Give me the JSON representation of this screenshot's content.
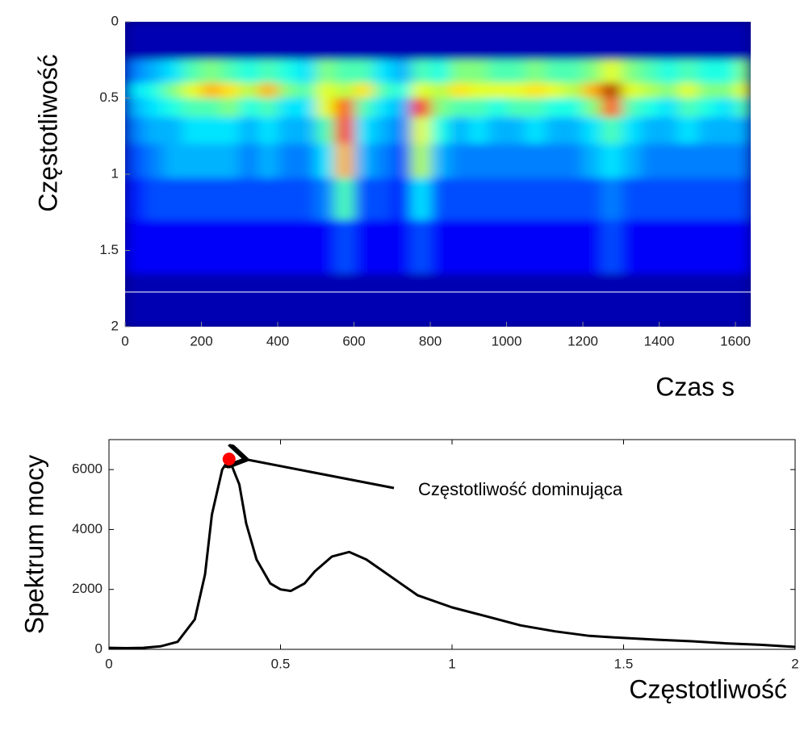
{
  "chart_data": [
    {
      "type": "heatmap",
      "colormap": "jet",
      "ylabel": "Częstotliwość",
      "xlabel": "Czas s",
      "xlim": [
        0,
        1640
      ],
      "xticks": [
        0,
        200,
        400,
        600,
        800,
        1000,
        1200,
        1400,
        1600
      ],
      "ylim": [
        2,
        0
      ],
      "yticks": [
        0,
        0.5,
        1,
        1.5,
        2
      ],
      "x": [
        25,
        75,
        125,
        175,
        225,
        275,
        325,
        375,
        425,
        475,
        525,
        575,
        625,
        675,
        725,
        775,
        825,
        875,
        925,
        975,
        1025,
        1075,
        1125,
        1175,
        1225,
        1275,
        1325,
        1375,
        1425,
        1475,
        1525,
        1575,
        1625
      ],
      "y": [
        0.15,
        0.35,
        0.45,
        0.55,
        0.7,
        0.9,
        1.15,
        1.45,
        1.85
      ],
      "z": [
        [
          0.05,
          0.05,
          0.05,
          0.05,
          0.05,
          0.05,
          0.05,
          0.05,
          0.05,
          0.05,
          0.05,
          0.05,
          0.05,
          0.05,
          0.05,
          0.05,
          0.05,
          0.05,
          0.05,
          0.05,
          0.05,
          0.05,
          0.05,
          0.05,
          0.05,
          0.05,
          0.05,
          0.05,
          0.05,
          0.05,
          0.05,
          0.05,
          0.05
        ],
        [
          0.25,
          0.3,
          0.35,
          0.45,
          0.5,
          0.45,
          0.4,
          0.45,
          0.4,
          0.35,
          0.5,
          0.45,
          0.45,
          0.35,
          0.3,
          0.45,
          0.4,
          0.5,
          0.5,
          0.45,
          0.45,
          0.5,
          0.45,
          0.45,
          0.5,
          0.6,
          0.5,
          0.45,
          0.4,
          0.45,
          0.4,
          0.4,
          0.5
        ],
        [
          0.35,
          0.4,
          0.5,
          0.6,
          0.7,
          0.65,
          0.55,
          0.7,
          0.5,
          0.45,
          0.6,
          0.55,
          0.65,
          0.45,
          0.4,
          0.6,
          0.55,
          0.65,
          0.6,
          0.6,
          0.6,
          0.65,
          0.6,
          0.55,
          0.7,
          0.95,
          0.6,
          0.55,
          0.5,
          0.6,
          0.5,
          0.5,
          0.6
        ],
        [
          0.3,
          0.35,
          0.4,
          0.45,
          0.45,
          0.5,
          0.4,
          0.45,
          0.35,
          0.35,
          0.6,
          0.8,
          0.45,
          0.35,
          0.3,
          0.85,
          0.5,
          0.45,
          0.45,
          0.4,
          0.45,
          0.45,
          0.4,
          0.4,
          0.5,
          0.8,
          0.45,
          0.4,
          0.35,
          0.45,
          0.4,
          0.35,
          0.45
        ],
        [
          0.25,
          0.3,
          0.3,
          0.35,
          0.35,
          0.35,
          0.3,
          0.35,
          0.3,
          0.3,
          0.45,
          0.85,
          0.35,
          0.3,
          0.25,
          0.6,
          0.4,
          0.3,
          0.35,
          0.3,
          0.3,
          0.35,
          0.3,
          0.3,
          0.35,
          0.45,
          0.35,
          0.3,
          0.3,
          0.35,
          0.3,
          0.3,
          0.3
        ],
        [
          0.2,
          0.25,
          0.3,
          0.3,
          0.3,
          0.3,
          0.25,
          0.3,
          0.25,
          0.25,
          0.35,
          0.7,
          0.3,
          0.25,
          0.2,
          0.55,
          0.3,
          0.25,
          0.25,
          0.25,
          0.25,
          0.25,
          0.25,
          0.25,
          0.3,
          0.35,
          0.3,
          0.25,
          0.25,
          0.25,
          0.25,
          0.25,
          0.25
        ],
        [
          0.15,
          0.2,
          0.2,
          0.2,
          0.2,
          0.2,
          0.2,
          0.2,
          0.2,
          0.2,
          0.25,
          0.45,
          0.2,
          0.2,
          0.15,
          0.35,
          0.2,
          0.2,
          0.2,
          0.2,
          0.2,
          0.2,
          0.2,
          0.2,
          0.2,
          0.25,
          0.2,
          0.2,
          0.2,
          0.2,
          0.2,
          0.2,
          0.2
        ],
        [
          0.12,
          0.12,
          0.12,
          0.12,
          0.12,
          0.12,
          0.12,
          0.12,
          0.12,
          0.12,
          0.12,
          0.2,
          0.12,
          0.12,
          0.12,
          0.2,
          0.12,
          0.12,
          0.12,
          0.12,
          0.12,
          0.12,
          0.12,
          0.12,
          0.12,
          0.2,
          0.12,
          0.12,
          0.12,
          0.12,
          0.12,
          0.12,
          0.12
        ],
        [
          0.05,
          0.05,
          0.05,
          0.05,
          0.05,
          0.05,
          0.05,
          0.05,
          0.05,
          0.05,
          0.05,
          0.05,
          0.05,
          0.05,
          0.05,
          0.05,
          0.05,
          0.05,
          0.05,
          0.05,
          0.05,
          0.05,
          0.05,
          0.05,
          0.05,
          0.05,
          0.05,
          0.05,
          0.05,
          0.05,
          0.05,
          0.05,
          0.05
        ]
      ]
    },
    {
      "type": "line",
      "color": "#000000",
      "ylabel": "Spektrum mocy",
      "xlabel": "Częstotliwość",
      "annotation": "Częstotliwość dominująca",
      "xlim": [
        0,
        2
      ],
      "xticks": [
        0,
        0.5,
        1,
        1.5,
        2
      ],
      "ylim": [
        0,
        7000
      ],
      "yticks": [
        0,
        2000,
        4000,
        6000
      ],
      "x": [
        0,
        0.05,
        0.1,
        0.15,
        0.2,
        0.25,
        0.28,
        0.3,
        0.33,
        0.35,
        0.38,
        0.4,
        0.43,
        0.47,
        0.5,
        0.53,
        0.57,
        0.6,
        0.65,
        0.7,
        0.75,
        0.8,
        0.85,
        0.9,
        1.0,
        1.1,
        1.2,
        1.3,
        1.4,
        1.5,
        1.6,
        1.7,
        1.8,
        1.9,
        2.0
      ],
      "y": [
        50,
        40,
        50,
        100,
        250,
        1000,
        2500,
        4500,
        6000,
        6350,
        5500,
        4200,
        3000,
        2200,
        2000,
        1950,
        2200,
        2600,
        3100,
        3250,
        3000,
        2600,
        2200,
        1800,
        1400,
        1100,
        800,
        600,
        450,
        380,
        320,
        270,
        200,
        150,
        80
      ],
      "marker_point": {
        "x": 0.35,
        "y": 6350,
        "color": "#ff0000"
      }
    }
  ]
}
